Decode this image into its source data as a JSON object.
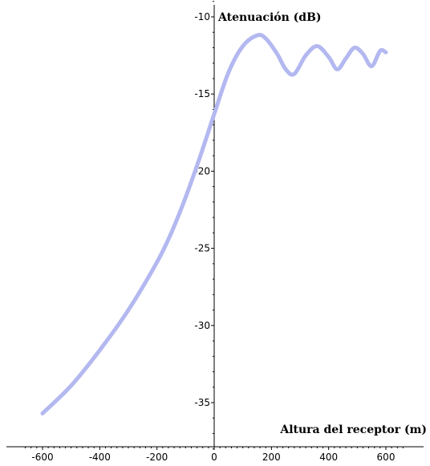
{
  "chart_data": {
    "type": "line",
    "title": "",
    "xlabel": "Altura del receptor (m)",
    "ylabel": "Atenuación (dB)",
    "xlim": [
      -700,
      700
    ],
    "ylim": [
      -38.5,
      -9.5
    ],
    "x_ticks": [
      -600,
      -400,
      -200,
      0,
      200,
      400,
      600
    ],
    "x_tick_labels": [
      "-600",
      "-400",
      "-200",
      "0",
      "200",
      "400",
      "600"
    ],
    "y_ticks": [
      -10,
      -15,
      -20,
      -25,
      -30,
      -35
    ],
    "y_tick_labels": [
      "-10",
      "-15",
      "-20",
      "-25",
      "-30",
      "-35"
    ],
    "grid": false,
    "series": [
      {
        "color": "#b3b8f0",
        "x": [
          -600,
          -500,
          -400,
          -300,
          -200,
          -150,
          -100,
          -50,
          0,
          50,
          100,
          150,
          180,
          220,
          250,
          280,
          320,
          360,
          400,
          430,
          460,
          490,
          520,
          550,
          580,
          600
        ],
        "y": [
          -35.7,
          -33.9,
          -31.6,
          -29.0,
          -25.9,
          -24.0,
          -21.7,
          -19.1,
          -16.3,
          -13.6,
          -11.9,
          -11.2,
          -11.4,
          -12.4,
          -13.4,
          -13.7,
          -12.5,
          -11.9,
          -12.6,
          -13.4,
          -12.7,
          -12.0,
          -12.4,
          -13.2,
          -12.2,
          -12.3
        ]
      }
    ]
  }
}
